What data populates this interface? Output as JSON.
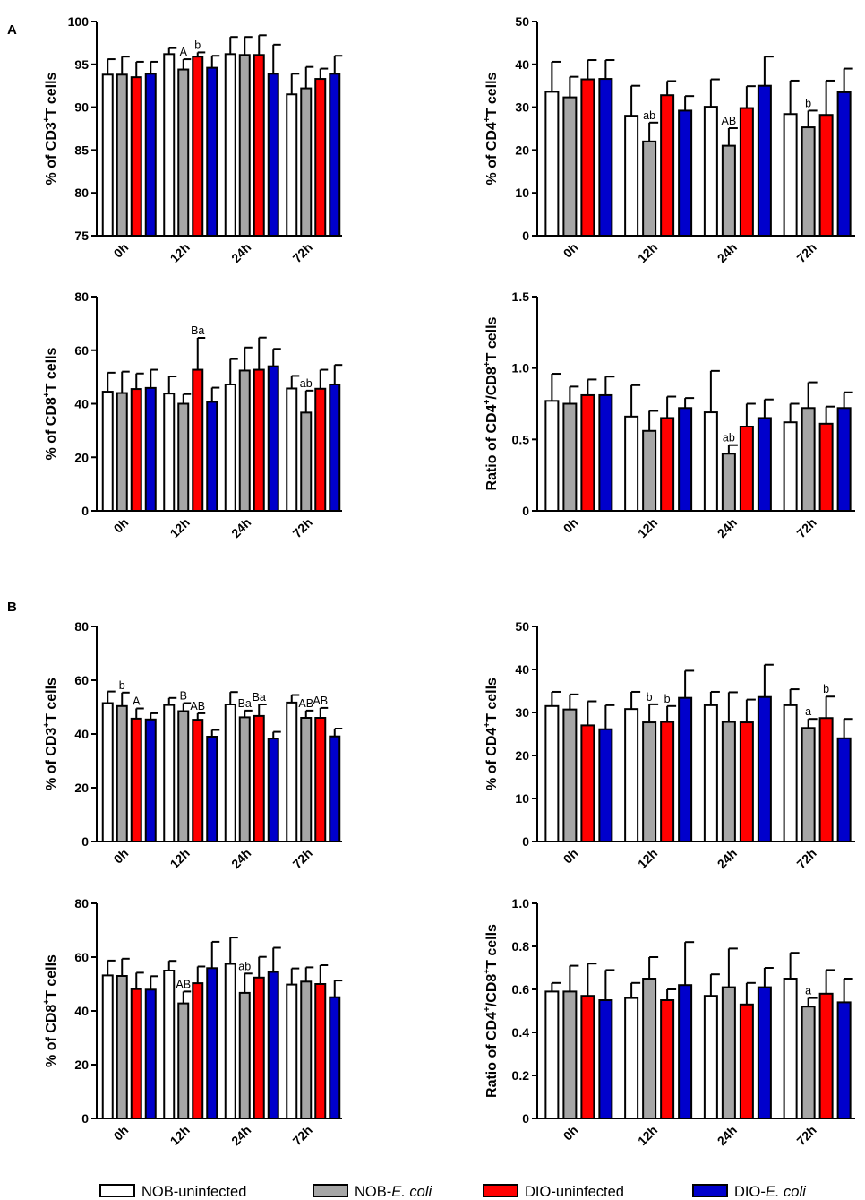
{
  "section_labels": [
    "A",
    "B"
  ],
  "legend": {
    "items": [
      {
        "prefix": "NOB-uninfected",
        "italic": "",
        "color": "#ffffff"
      },
      {
        "prefix": "NOB-",
        "italic": "E. coli",
        "color": "#a6a6a6"
      },
      {
        "prefix": "DIO-uninfected",
        "italic": "",
        "color": "#ff0000"
      },
      {
        "prefix": "DIO-",
        "italic": "E. coli",
        "color": "#0000cc"
      }
    ]
  },
  "chart_data": [
    {
      "id": "A1",
      "type": "bar",
      "section": "A",
      "position": "top-left",
      "ylabel": {
        "pre": "% of CD3",
        "sup": "+",
        "post": "T cells"
      },
      "categories": [
        "0h",
        "12h",
        "24h",
        "72h"
      ],
      "ylim": [
        75,
        100
      ],
      "yticks": [
        75,
        80,
        85,
        90,
        95,
        100
      ],
      "series": [
        {
          "name": "NOB-uninfected",
          "values": [
            93.8,
            96.2,
            96.2,
            91.5
          ],
          "errors": [
            1.8,
            0.7,
            2.0,
            2.4
          ]
        },
        {
          "name": "NOB-E. coli",
          "values": [
            93.8,
            94.4,
            96.1,
            92.2
          ],
          "errors": [
            2.1,
            1.2,
            2.1,
            2.5
          ]
        },
        {
          "name": "DIO-uninfected",
          "values": [
            93.5,
            95.9,
            96.1,
            93.3
          ],
          "errors": [
            1.8,
            0.5,
            2.3,
            1.2
          ]
        },
        {
          "name": "DIO-E. coli",
          "values": [
            93.9,
            94.6,
            93.9,
            93.9
          ],
          "errors": [
            1.4,
            1.4,
            3.4,
            2.1
          ]
        }
      ],
      "annotations": [
        {
          "category": "12h",
          "series": 1,
          "text": "A"
        },
        {
          "category": "12h",
          "series": 2,
          "text": "b"
        }
      ]
    },
    {
      "id": "A2",
      "type": "bar",
      "section": "A",
      "position": "top-right",
      "ylabel": {
        "pre": "% of CD4",
        "sup": "+",
        "post": "T cells"
      },
      "categories": [
        "0h",
        "12h",
        "24h",
        "72h"
      ],
      "ylim": [
        0,
        50
      ],
      "yticks": [
        0,
        10,
        20,
        30,
        40,
        50
      ],
      "series": [
        {
          "name": "NOB-uninfected",
          "values": [
            33.6,
            28.0,
            30.1,
            28.4
          ],
          "errors": [
            7.0,
            7.0,
            6.4,
            7.8
          ]
        },
        {
          "name": "NOB-E. coli",
          "values": [
            32.3,
            22.0,
            21.0,
            25.3
          ],
          "errors": [
            4.8,
            4.4,
            4.1,
            3.9
          ]
        },
        {
          "name": "DIO-uninfected",
          "values": [
            36.5,
            32.8,
            29.8,
            28.2
          ],
          "errors": [
            4.5,
            3.3,
            5.1,
            8.0
          ]
        },
        {
          "name": "DIO-E. coli",
          "values": [
            36.6,
            29.2,
            35.0,
            33.5
          ],
          "errors": [
            4.4,
            3.4,
            6.8,
            5.5
          ]
        }
      ],
      "annotations": [
        {
          "category": "12h",
          "series": 1,
          "text": "ab"
        },
        {
          "category": "24h",
          "series": 1,
          "text": "AB"
        },
        {
          "category": "72h",
          "series": 1,
          "text": "b"
        }
      ]
    },
    {
      "id": "A3",
      "type": "bar",
      "section": "A",
      "position": "middle-left",
      "ylabel": {
        "pre": "% of CD8",
        "sup": "+",
        "post": "T cells"
      },
      "categories": [
        "0h",
        "12h",
        "24h",
        "72h"
      ],
      "ylim": [
        0,
        80
      ],
      "yticks": [
        0,
        20,
        40,
        60,
        80
      ],
      "series": [
        {
          "name": "NOB-uninfected",
          "values": [
            44.5,
            43.8,
            47.2,
            45.7
          ],
          "errors": [
            7.1,
            6.4,
            9.5,
            4.7
          ]
        },
        {
          "name": "NOB-E. coli",
          "values": [
            44.0,
            40.0,
            52.4,
            36.7
          ],
          "errors": [
            8.0,
            3.6,
            8.6,
            8.2
          ]
        },
        {
          "name": "DIO-uninfected",
          "values": [
            45.5,
            52.7,
            52.7,
            45.6
          ],
          "errors": [
            5.8,
            11.9,
            12.0,
            7.1
          ]
        },
        {
          "name": "DIO-E. coli",
          "values": [
            45.9,
            40.7,
            54.0,
            47.2
          ],
          "errors": [
            6.8,
            5.3,
            6.5,
            7.3
          ]
        }
      ],
      "annotations": [
        {
          "category": "12h",
          "series": 2,
          "text": "Ba"
        },
        {
          "category": "72h",
          "series": 1,
          "text": "ab"
        }
      ]
    },
    {
      "id": "A4",
      "type": "bar",
      "section": "A",
      "position": "middle-right",
      "ylabel": {
        "pre": "Ratio of CD4",
        "sup": "+",
        "mid": "/CD8",
        "sup2": "+",
        "post": "T cells"
      },
      "categories": [
        "0h",
        "12h",
        "24h",
        "72h"
      ],
      "ylim": [
        0,
        1.5
      ],
      "yticks": [
        0,
        0.5,
        1.0,
        1.5
      ],
      "series": [
        {
          "name": "NOB-uninfected",
          "values": [
            0.77,
            0.66,
            0.69,
            0.62
          ],
          "errors": [
            0.19,
            0.22,
            0.29,
            0.13
          ]
        },
        {
          "name": "NOB-E. coli",
          "values": [
            0.75,
            0.56,
            0.4,
            0.72
          ],
          "errors": [
            0.12,
            0.14,
            0.06,
            0.18
          ]
        },
        {
          "name": "DIO-uninfected",
          "values": [
            0.81,
            0.65,
            0.59,
            0.61
          ],
          "errors": [
            0.11,
            0.15,
            0.16,
            0.12
          ]
        },
        {
          "name": "DIO-E. coli",
          "values": [
            0.81,
            0.72,
            0.65,
            0.72
          ],
          "errors": [
            0.13,
            0.07,
            0.13,
            0.11
          ]
        }
      ],
      "annotations": [
        {
          "category": "24h",
          "series": 1,
          "text": "ab"
        }
      ]
    },
    {
      "id": "B1",
      "type": "bar",
      "section": "B",
      "position": "top-left",
      "ylabel": {
        "pre": "% of CD3",
        "sup": "+",
        "post": "T cells"
      },
      "categories": [
        "0h",
        "12h",
        "24h",
        "72h"
      ],
      "ylim": [
        0,
        80
      ],
      "yticks": [
        0,
        20,
        40,
        60,
        80
      ],
      "series": [
        {
          "name": "NOB-uninfected",
          "values": [
            51.5,
            50.8,
            51.0,
            51.7
          ],
          "errors": [
            4.3,
            2.6,
            4.6,
            2.8
          ]
        },
        {
          "name": "NOB-E. coli",
          "values": [
            50.4,
            48.5,
            46.2,
            46.0
          ],
          "errors": [
            5.0,
            3.0,
            2.5,
            2.7
          ]
        },
        {
          "name": "DIO-uninfected",
          "values": [
            45.7,
            45.3,
            46.7,
            46.0
          ],
          "errors": [
            3.8,
            2.4,
            4.3,
            3.7
          ]
        },
        {
          "name": "DIO-E. coli",
          "values": [
            45.4,
            39.0,
            38.3,
            39.1
          ],
          "errors": [
            2.3,
            2.5,
            2.5,
            2.9
          ]
        }
      ],
      "annotations": [
        {
          "category": "0h",
          "series": 1,
          "text": "b"
        },
        {
          "category": "0h",
          "series": 2,
          "text": "A"
        },
        {
          "category": "12h",
          "series": 1,
          "text": "B"
        },
        {
          "category": "12h",
          "series": 2,
          "text": "AB"
        },
        {
          "category": "24h",
          "series": 1,
          "text": "Ba"
        },
        {
          "category": "24h",
          "series": 2,
          "text": "Ba"
        },
        {
          "category": "72h",
          "series": 1,
          "text": "AB"
        },
        {
          "category": "72h",
          "series": 2,
          "text": "AB"
        }
      ]
    },
    {
      "id": "B2",
      "type": "bar",
      "section": "B",
      "position": "top-right",
      "ylabel": {
        "pre": "% of CD4",
        "sup": "+",
        "post": "T cells"
      },
      "categories": [
        "0h",
        "12h",
        "24h",
        "72h"
      ],
      "ylim": [
        0,
        50
      ],
      "yticks": [
        0,
        10,
        20,
        30,
        40,
        50
      ],
      "series": [
        {
          "name": "NOB-uninfected",
          "values": [
            31.5,
            30.8,
            31.7,
            31.7
          ],
          "errors": [
            3.3,
            4.0,
            3.1,
            3.7
          ]
        },
        {
          "name": "NOB-E. coli",
          "values": [
            30.7,
            27.7,
            27.8,
            26.4
          ],
          "errors": [
            3.5,
            4.2,
            6.9,
            2.1
          ]
        },
        {
          "name": "DIO-uninfected",
          "values": [
            27.0,
            27.8,
            27.7,
            28.7
          ],
          "errors": [
            5.6,
            3.7,
            5.3,
            5.0
          ]
        },
        {
          "name": "DIO-E. coli",
          "values": [
            26.1,
            33.4,
            33.6,
            24.0
          ],
          "errors": [
            5.6,
            6.3,
            7.5,
            4.5
          ]
        }
      ],
      "annotations": [
        {
          "category": "12h",
          "series": 1,
          "text": "b"
        },
        {
          "category": "12h",
          "series": 2,
          "text": "b"
        },
        {
          "category": "72h",
          "series": 1,
          "text": "a"
        },
        {
          "category": "72h",
          "series": 2,
          "text": "b"
        }
      ]
    },
    {
      "id": "B3",
      "type": "bar",
      "section": "B",
      "position": "bottom-left",
      "ylabel": {
        "pre": "% of CD8",
        "sup": "+",
        "post": "T cells"
      },
      "categories": [
        "0h",
        "12h",
        "24h",
        "72h"
      ],
      "ylim": [
        0,
        80
      ],
      "yticks": [
        0,
        20,
        40,
        60,
        80
      ],
      "series": [
        {
          "name": "NOB-uninfected",
          "values": [
            53.2,
            55.0,
            57.5,
            49.8
          ],
          "errors": [
            5.5,
            3.6,
            9.8,
            6.0
          ]
        },
        {
          "name": "NOB-E. coli",
          "values": [
            53.0,
            42.8,
            46.7,
            50.9
          ],
          "errors": [
            6.4,
            4.4,
            7.2,
            5.3
          ]
        },
        {
          "name": "DIO-uninfected",
          "values": [
            48.1,
            50.3,
            52.4,
            50.0
          ],
          "errors": [
            6.1,
            6.2,
            7.7,
            7.0
          ]
        },
        {
          "name": "DIO-E. coli",
          "values": [
            47.9,
            55.9,
            54.5,
            45.1
          ],
          "errors": [
            5.0,
            9.8,
            9.0,
            6.2
          ]
        }
      ],
      "annotations": [
        {
          "category": "12h",
          "series": 1,
          "text": "AB"
        },
        {
          "category": "24h",
          "series": 1,
          "text": "ab"
        }
      ]
    },
    {
      "id": "B4",
      "type": "bar",
      "section": "B",
      "position": "bottom-right",
      "ylabel": {
        "pre": "Ratio of CD4",
        "sup": "+",
        "mid": "/CD8",
        "sup2": "+",
        "post": "T cells"
      },
      "categories": [
        "0h",
        "12h",
        "24h",
        "72h"
      ],
      "ylim": [
        0,
        1.0
      ],
      "yticks": [
        0,
        0.2,
        0.4,
        0.6,
        0.8,
        1.0
      ],
      "series": [
        {
          "name": "NOB-uninfected",
          "values": [
            0.59,
            0.56,
            0.57,
            0.65
          ],
          "errors": [
            0.04,
            0.07,
            0.1,
            0.12
          ]
        },
        {
          "name": "NOB-E. coli",
          "values": [
            0.59,
            0.65,
            0.61,
            0.52
          ],
          "errors": [
            0.12,
            0.1,
            0.18,
            0.04
          ]
        },
        {
          "name": "DIO-uninfected",
          "values": [
            0.57,
            0.55,
            0.53,
            0.58
          ],
          "errors": [
            0.15,
            0.05,
            0.1,
            0.11
          ]
        },
        {
          "name": "DIO-E. coli",
          "values": [
            0.55,
            0.62,
            0.61,
            0.54
          ],
          "errors": [
            0.14,
            0.2,
            0.09,
            0.11
          ]
        }
      ],
      "annotations": [
        {
          "category": "72h",
          "series": 1,
          "text": "a"
        }
      ]
    }
  ]
}
